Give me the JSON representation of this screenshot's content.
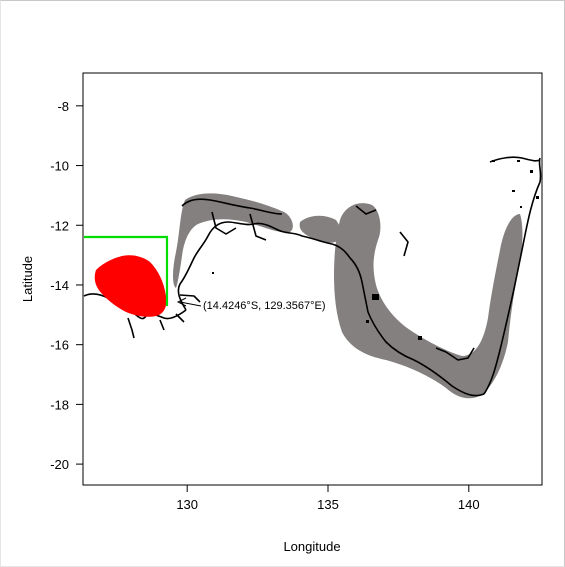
{
  "map": {
    "axes": {
      "xlabel": "Longitude",
      "ylabel": "Latitude",
      "xlim": [
        126.3,
        142.6
      ],
      "ylim": [
        -20.7,
        -6.9
      ],
      "x_ticks": [
        130,
        135,
        140
      ],
      "y_ticks": [
        -8,
        -10,
        -12,
        -14,
        -16,
        -18,
        -20
      ]
    },
    "annotation": {
      "text": "(14.4246°S, 129.3567°E)",
      "point_lon": 129.3567,
      "point_lat": -14.4246
    },
    "colors": {
      "shelf_area": "#858080",
      "marked_region": "#ff0000",
      "box_outline": "#00dd00",
      "coastline": "#000000"
    }
  }
}
